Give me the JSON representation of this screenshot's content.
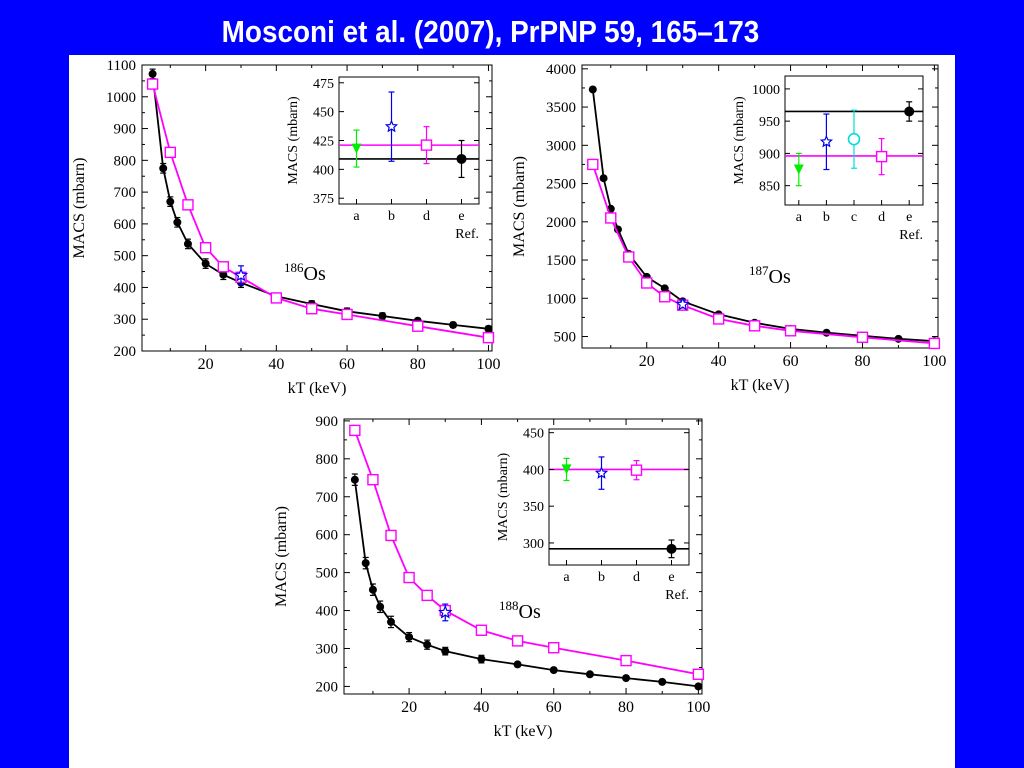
{
  "title": "Mosconi et al. (2007), PrPNP 59, 165–173",
  "colors": {
    "background": "#0000ff",
    "panel": "#ffffff",
    "measured": "#000000",
    "model": "#ff00ff",
    "ref_a": "#00ee00",
    "ref_b": "#0000ee",
    "ref_c": "#00dddd",
    "ref_d": "#ff00ff",
    "ref_e": "#000000"
  },
  "chart_data": [
    {
      "type": "line",
      "isotope_label": {
        "mass": "186",
        "symbol": "Os"
      },
      "xlabel": "kT (keV)",
      "ylabel": "MACS (mbarn)",
      "xlim": [
        2,
        101
      ],
      "ylim": [
        200,
        1100
      ],
      "xticks": [
        20,
        40,
        60,
        80,
        100
      ],
      "yticks": [
        200,
        300,
        400,
        500,
        600,
        700,
        800,
        900,
        1000,
        1100
      ],
      "series": [
        {
          "key": "measured",
          "color": "#000000",
          "marker": "filled-circle",
          "x": [
            5,
            8,
            10,
            12,
            15,
            20,
            25,
            30,
            40,
            50,
            60,
            70,
            80,
            90,
            100
          ],
          "y": [
            1072,
            775,
            670,
            605,
            537,
            475,
            440,
            415,
            372,
            348,
            325,
            310,
            295,
            282,
            270
          ],
          "err": [
            15,
            15,
            15,
            15,
            15,
            15,
            15,
            15,
            10,
            10,
            10,
            10,
            8,
            8,
            8
          ]
        },
        {
          "key": "model",
          "color": "#ff00ff",
          "marker": "open-square",
          "x": [
            5,
            10,
            15,
            20,
            25,
            30,
            40,
            50,
            60,
            80,
            100
          ],
          "y": [
            1040,
            825,
            660,
            525,
            465,
            432,
            367,
            333,
            315,
            278,
            242
          ]
        }
      ],
      "highlight_point": {
        "x": 30,
        "y": 438,
        "err": 30,
        "color": "#0000ee",
        "marker": "open-star"
      },
      "inset": {
        "xlabel": "Ref.",
        "ylabel": "MACS (mbarn)",
        "ylim": [
          370,
          480
        ],
        "yticks": [
          375,
          400,
          425,
          450,
          475
        ],
        "refs": [
          {
            "label": "a",
            "value": 418,
            "err": 16,
            "color": "#00ee00",
            "marker": "filled-triangle-down"
          },
          {
            "label": "b",
            "value": 437,
            "err": 30,
            "color": "#0000ee",
            "marker": "open-star"
          },
          {
            "label": "d",
            "value": 421,
            "err": 16,
            "color": "#ff00ff",
            "marker": "open-square"
          },
          {
            "label": "e",
            "value": 409,
            "err": 16,
            "color": "#000000",
            "marker": "filled-circle"
          }
        ],
        "hlines": [
          {
            "value": 421,
            "color": "#ff00ff"
          },
          {
            "value": 409,
            "color": "#000000"
          }
        ]
      }
    },
    {
      "type": "line",
      "isotope_label": {
        "mass": "187",
        "symbol": "Os"
      },
      "xlabel": "kT (keV)",
      "ylabel": "MACS (mbarn)",
      "xlim": [
        2,
        101
      ],
      "ylim": [
        350,
        4050
      ],
      "xticks": [
        20,
        40,
        60,
        80,
        100
      ],
      "yticks": [
        500,
        1000,
        1500,
        2000,
        2500,
        3000,
        3500,
        4000
      ],
      "series": [
        {
          "key": "measured",
          "color": "#000000",
          "marker": "filled-circle",
          "x": [
            5,
            8,
            10,
            12,
            15,
            20,
            25,
            30,
            40,
            50,
            60,
            70,
            80,
            90,
            100
          ],
          "y": [
            3730,
            2570,
            2170,
            1900,
            1580,
            1280,
            1130,
            960,
            790,
            680,
            600,
            550,
            510,
            470,
            440
          ],
          "err": [
            0,
            0,
            0,
            0,
            0,
            0,
            0,
            0,
            0,
            0,
            0,
            0,
            0,
            0,
            0
          ]
        },
        {
          "key": "model",
          "color": "#ff00ff",
          "marker": "open-square",
          "x": [
            5,
            10,
            15,
            20,
            25,
            30,
            40,
            50,
            60,
            80,
            100
          ],
          "y": [
            2750,
            2050,
            1540,
            1200,
            1020,
            910,
            730,
            640,
            575,
            490,
            410
          ]
        }
      ],
      "highlight_point": {
        "x": 30,
        "y": 920,
        "err": 45,
        "color": "#0000ee",
        "marker": "open-star"
      },
      "inset": {
        "xlabel": "Ref.",
        "ylabel": "MACS (mbarn)",
        "ylim": [
          820,
          1020
        ],
        "yticks": [
          850,
          900,
          950,
          1000
        ],
        "refs": [
          {
            "label": "a",
            "value": 875,
            "err": 25,
            "color": "#00ee00",
            "marker": "filled-triangle-down"
          },
          {
            "label": "b",
            "value": 918,
            "err": 43,
            "color": "#0000ee",
            "marker": "open-star"
          },
          {
            "label": "c",
            "value": 922,
            "err": 45,
            "color": "#00dddd",
            "marker": "open-circle"
          },
          {
            "label": "d",
            "value": 895,
            "err": 28,
            "color": "#ff00ff",
            "marker": "open-square"
          },
          {
            "label": "e",
            "value": 965,
            "err": 15,
            "color": "#000000",
            "marker": "filled-circle"
          }
        ],
        "hlines": [
          {
            "value": 965,
            "color": "#000000"
          },
          {
            "value": 896,
            "color": "#ff00ff"
          }
        ]
      }
    },
    {
      "type": "line",
      "isotope_label": {
        "mass": "188",
        "symbol": "Os"
      },
      "xlabel": "kT (keV)",
      "ylabel": "MACS (mbarn)",
      "xlim": [
        2,
        101
      ],
      "ylim": [
        180,
        905
      ],
      "xticks": [
        20,
        40,
        60,
        80,
        100
      ],
      "yticks": [
        200,
        300,
        400,
        500,
        600,
        700,
        800,
        900
      ],
      "series": [
        {
          "key": "measured",
          "color": "#000000",
          "marker": "filled-circle",
          "x": [
            5,
            8,
            10,
            12,
            15,
            20,
            25,
            30,
            40,
            50,
            60,
            70,
            80,
            90,
            100
          ],
          "y": [
            745,
            525,
            455,
            410,
            370,
            330,
            310,
            293,
            272,
            258,
            243,
            232,
            222,
            212,
            200
          ],
          "err": [
            15,
            15,
            15,
            15,
            15,
            12,
            12,
            10,
            10,
            0,
            0,
            0,
            0,
            0,
            0
          ]
        },
        {
          "key": "model",
          "color": "#ff00ff",
          "marker": "open-square",
          "x": [
            5,
            10,
            15,
            20,
            25,
            30,
            40,
            50,
            60,
            80,
            100
          ],
          "y": [
            875,
            745,
            598,
            487,
            440,
            400,
            348,
            320,
            302,
            268,
            232
          ]
        }
      ],
      "highlight_point": {
        "x": 30,
        "y": 395,
        "err": 22,
        "color": "#0000ee",
        "marker": "open-star"
      },
      "inset": {
        "xlabel": "Ref.",
        "ylabel": "MACS (mbarn)",
        "ylim": [
          270,
          455
        ],
        "yticks": [
          300,
          350,
          400,
          450
        ],
        "refs": [
          {
            "label": "a",
            "value": 400,
            "err": 15,
            "color": "#00ee00",
            "marker": "filled-triangle-down"
          },
          {
            "label": "b",
            "value": 395,
            "err": 22,
            "color": "#0000ee",
            "marker": "open-star"
          },
          {
            "label": "d",
            "value": 399,
            "err": 13,
            "color": "#ff00ff",
            "marker": "open-square"
          },
          {
            "label": "e",
            "value": 292,
            "err": 12,
            "color": "#000000",
            "marker": "filled-circle"
          }
        ],
        "hlines": [
          {
            "value": 400,
            "color": "#ff00ff"
          },
          {
            "value": 292,
            "color": "#000000"
          }
        ]
      }
    }
  ]
}
